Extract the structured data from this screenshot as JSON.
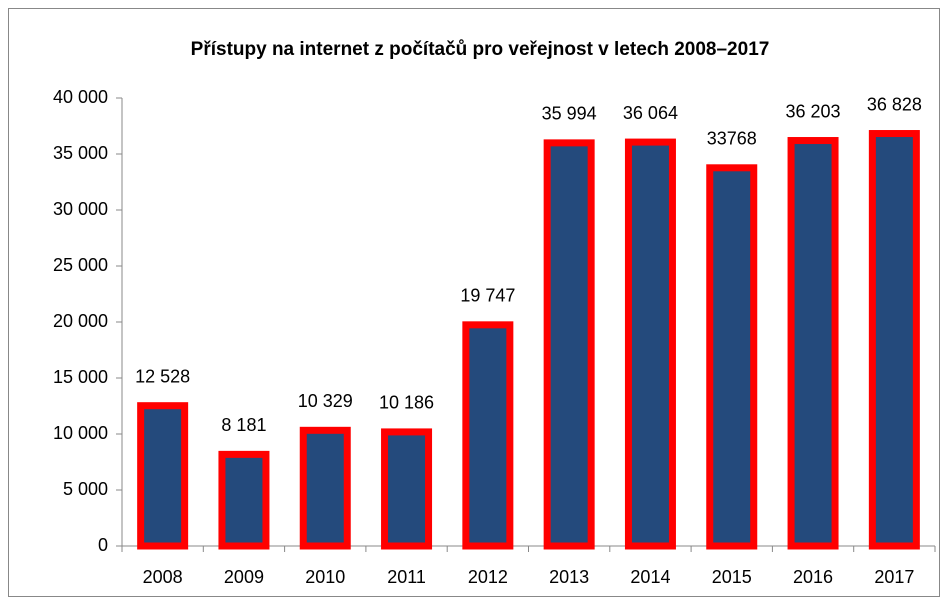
{
  "chart_data": {
    "type": "bar",
    "title": "Přístupy na internet z počítačů pro veřejnost v letech 2008–2017",
    "categories": [
      "2008",
      "2009",
      "2010",
      "2011",
      "2012",
      "2013",
      "2014",
      "2015",
      "2016",
      "2017"
    ],
    "values": [
      12528,
      8181,
      10329,
      10186,
      19747,
      35994,
      36064,
      33768,
      36203,
      36828
    ],
    "value_labels": [
      "12 528",
      "8 181",
      "10 329",
      "10 186",
      "19 747",
      "35 994",
      "36 064",
      "33768",
      "36 203",
      "36 828"
    ],
    "color": "#244a7c",
    "edge_color": "#ff0000",
    "ylim": [
      0,
      40000
    ],
    "yticks": [
      0,
      {
        "value": 5000,
        "label": "5 000"
      },
      {
        "value": 10000,
        "label": "10 000"
      },
      {
        "value": 15000,
        "label": "15 000"
      },
      {
        "value": 20000,
        "label": "20 000"
      },
      {
        "value": 25000,
        "label": "25 000"
      },
      {
        "value": 30000,
        "label": "30 000"
      },
      {
        "value": 35000,
        "label": "35 000"
      },
      {
        "value": 40000,
        "label": "40 000"
      }
    ],
    "grid": false
  }
}
